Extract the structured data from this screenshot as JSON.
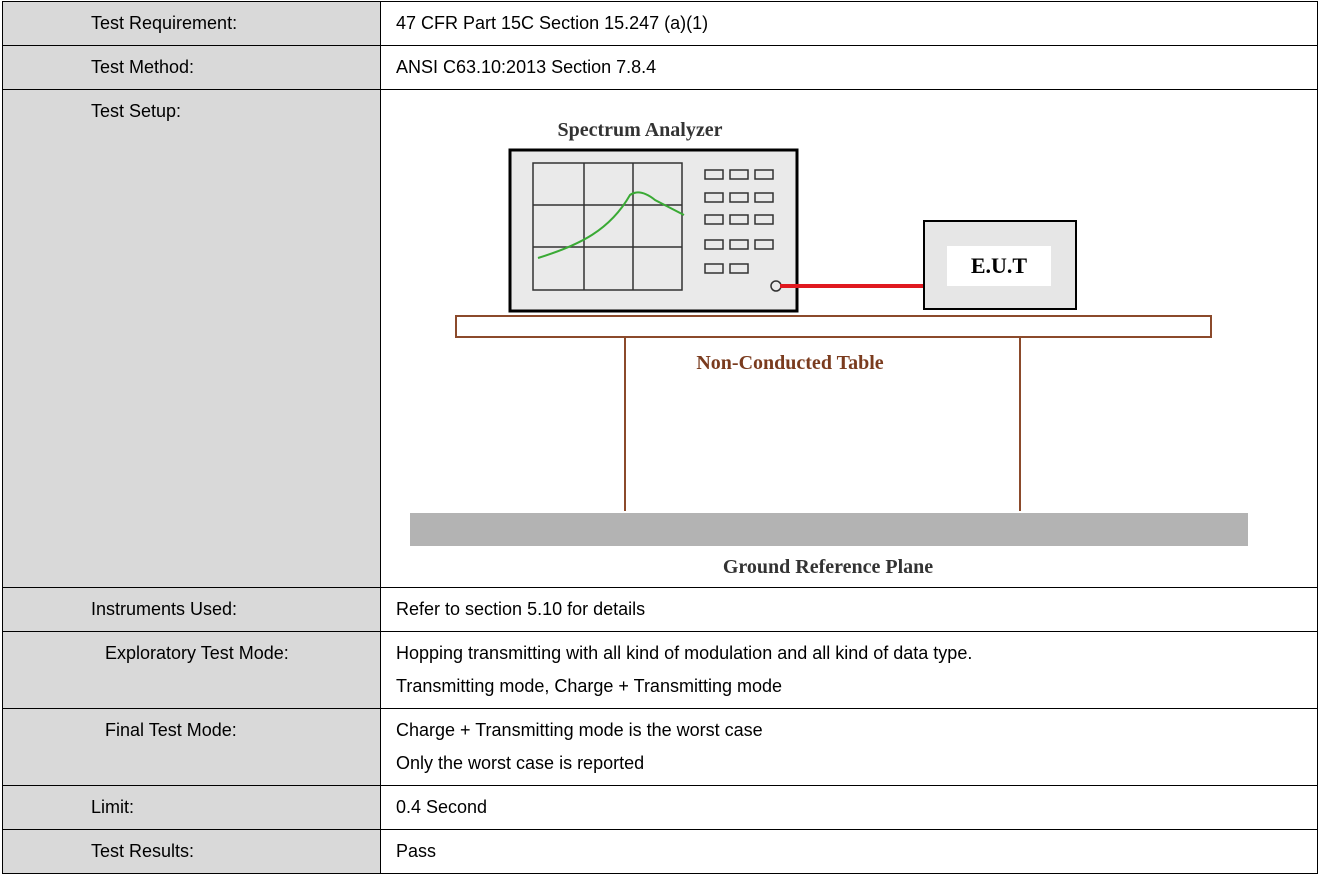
{
  "table": {
    "rows": [
      {
        "label": "Test Requirement:",
        "lines": [
          "47 CFR Part 15C Section 15.247 (a)(1)"
        ]
      },
      {
        "label": "Test Method:",
        "lines": [
          "ANSI C63.10:2013 Section 7.8.4"
        ]
      },
      {
        "label": "Test Setup:",
        "diagram": {
          "analyzer": "Spectrum Analyzer",
          "eut": "E.U.T",
          "table": "Non-Conducted Table",
          "ground": "Ground Reference Plane"
        }
      },
      {
        "label": "Instruments Used:",
        "lines": [
          "Refer to section 5.10 for details"
        ]
      },
      {
        "label": "Exploratory Test Mode:",
        "lines": [
          "Hopping transmitting with all kind of modulation and all kind of data type.",
          "Transmitting mode, Charge + Transmitting mode"
        ]
      },
      {
        "label": "Final Test Mode:",
        "lines": [
          "Charge + Transmitting mode is the worst case",
          "Only the worst case is reported"
        ]
      },
      {
        "label": "Limit:",
        "lines": [
          "0.4 Second"
        ]
      },
      {
        "label": "Test Results:",
        "lines": [
          "Pass"
        ]
      }
    ]
  }
}
